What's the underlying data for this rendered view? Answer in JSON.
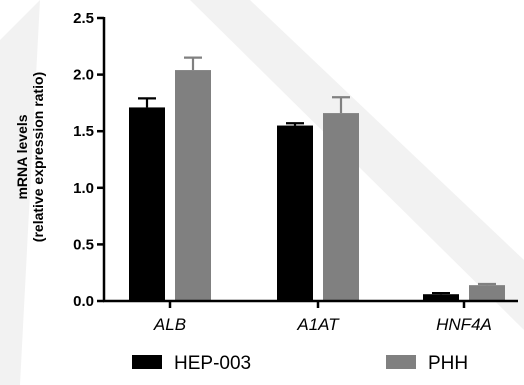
{
  "chart_data": {
    "type": "bar",
    "categories": [
      "ALB",
      "A1AT",
      "HNF4A"
    ],
    "series": [
      {
        "name": "HEP-003",
        "values": [
          1.71,
          1.55,
          0.06
        ],
        "errors": [
          0.08,
          0.02,
          0.01
        ],
        "color": "#000000"
      },
      {
        "name": "PHH",
        "values": [
          2.04,
          1.66,
          0.14
        ],
        "errors": [
          0.11,
          0.14,
          0.01
        ],
        "color": "#808080"
      }
    ],
    "ylabel_lines": [
      "mRNA levels",
      "(relative expression ratio)"
    ],
    "ylim": [
      0,
      2.5
    ],
    "yticks": [
      "0.0",
      "0.5",
      "1.0",
      "1.5",
      "2.0",
      "2.5"
    ],
    "grid": false,
    "legend_position": "bottom"
  }
}
